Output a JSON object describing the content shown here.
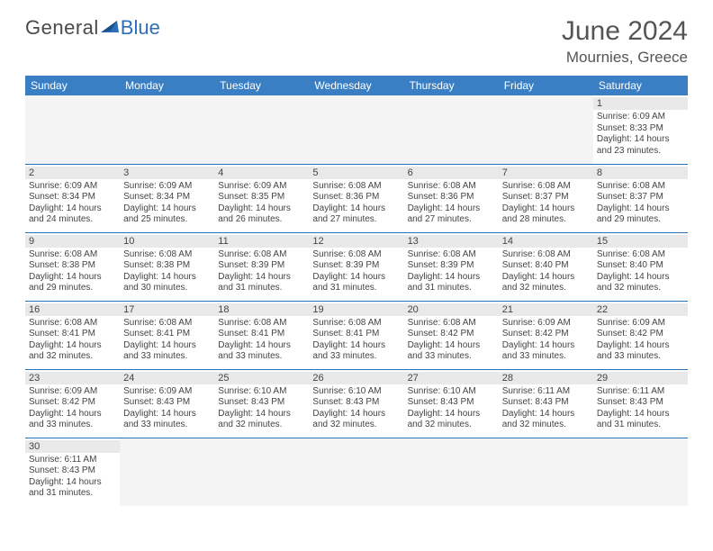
{
  "logo": {
    "general": "General",
    "blue": "Blue",
    "arrow_color": "#2d6fb8"
  },
  "title": "June 2024",
  "location": "Mournies, Greece",
  "header_bg": "#3a7fc4",
  "day_headers": [
    "Sunday",
    "Monday",
    "Tuesday",
    "Wednesday",
    "Thursday",
    "Friday",
    "Saturday"
  ],
  "weeks": [
    [
      null,
      null,
      null,
      null,
      null,
      null,
      {
        "n": "1",
        "sr": "6:09 AM",
        "ss": "8:33 PM",
        "dh": "14",
        "dm": "23"
      }
    ],
    [
      {
        "n": "2",
        "sr": "6:09 AM",
        "ss": "8:34 PM",
        "dh": "14",
        "dm": "24"
      },
      {
        "n": "3",
        "sr": "6:09 AM",
        "ss": "8:34 PM",
        "dh": "14",
        "dm": "25"
      },
      {
        "n": "4",
        "sr": "6:09 AM",
        "ss": "8:35 PM",
        "dh": "14",
        "dm": "26"
      },
      {
        "n": "5",
        "sr": "6:08 AM",
        "ss": "8:36 PM",
        "dh": "14",
        "dm": "27"
      },
      {
        "n": "6",
        "sr": "6:08 AM",
        "ss": "8:36 PM",
        "dh": "14",
        "dm": "27"
      },
      {
        "n": "7",
        "sr": "6:08 AM",
        "ss": "8:37 PM",
        "dh": "14",
        "dm": "28"
      },
      {
        "n": "8",
        "sr": "6:08 AM",
        "ss": "8:37 PM",
        "dh": "14",
        "dm": "29"
      }
    ],
    [
      {
        "n": "9",
        "sr": "6:08 AM",
        "ss": "8:38 PM",
        "dh": "14",
        "dm": "29"
      },
      {
        "n": "10",
        "sr": "6:08 AM",
        "ss": "8:38 PM",
        "dh": "14",
        "dm": "30"
      },
      {
        "n": "11",
        "sr": "6:08 AM",
        "ss": "8:39 PM",
        "dh": "14",
        "dm": "31"
      },
      {
        "n": "12",
        "sr": "6:08 AM",
        "ss": "8:39 PM",
        "dh": "14",
        "dm": "31"
      },
      {
        "n": "13",
        "sr": "6:08 AM",
        "ss": "8:39 PM",
        "dh": "14",
        "dm": "31"
      },
      {
        "n": "14",
        "sr": "6:08 AM",
        "ss": "8:40 PM",
        "dh": "14",
        "dm": "32"
      },
      {
        "n": "15",
        "sr": "6:08 AM",
        "ss": "8:40 PM",
        "dh": "14",
        "dm": "32"
      }
    ],
    [
      {
        "n": "16",
        "sr": "6:08 AM",
        "ss": "8:41 PM",
        "dh": "14",
        "dm": "32"
      },
      {
        "n": "17",
        "sr": "6:08 AM",
        "ss": "8:41 PM",
        "dh": "14",
        "dm": "33"
      },
      {
        "n": "18",
        "sr": "6:08 AM",
        "ss": "8:41 PM",
        "dh": "14",
        "dm": "33"
      },
      {
        "n": "19",
        "sr": "6:08 AM",
        "ss": "8:41 PM",
        "dh": "14",
        "dm": "33"
      },
      {
        "n": "20",
        "sr": "6:08 AM",
        "ss": "8:42 PM",
        "dh": "14",
        "dm": "33"
      },
      {
        "n": "21",
        "sr": "6:09 AM",
        "ss": "8:42 PM",
        "dh": "14",
        "dm": "33"
      },
      {
        "n": "22",
        "sr": "6:09 AM",
        "ss": "8:42 PM",
        "dh": "14",
        "dm": "33"
      }
    ],
    [
      {
        "n": "23",
        "sr": "6:09 AM",
        "ss": "8:42 PM",
        "dh": "14",
        "dm": "33"
      },
      {
        "n": "24",
        "sr": "6:09 AM",
        "ss": "8:43 PM",
        "dh": "14",
        "dm": "33"
      },
      {
        "n": "25",
        "sr": "6:10 AM",
        "ss": "8:43 PM",
        "dh": "14",
        "dm": "32"
      },
      {
        "n": "26",
        "sr": "6:10 AM",
        "ss": "8:43 PM",
        "dh": "14",
        "dm": "32"
      },
      {
        "n": "27",
        "sr": "6:10 AM",
        "ss": "8:43 PM",
        "dh": "14",
        "dm": "32"
      },
      {
        "n": "28",
        "sr": "6:11 AM",
        "ss": "8:43 PM",
        "dh": "14",
        "dm": "32"
      },
      {
        "n": "29",
        "sr": "6:11 AM",
        "ss": "8:43 PM",
        "dh": "14",
        "dm": "31"
      }
    ],
    [
      {
        "n": "30",
        "sr": "6:11 AM",
        "ss": "8:43 PM",
        "dh": "14",
        "dm": "31"
      },
      null,
      null,
      null,
      null,
      null,
      null
    ]
  ],
  "labels": {
    "sunrise": "Sunrise:",
    "sunset": "Sunset:",
    "daylight": "Daylight:",
    "hours": "hours",
    "and": "and",
    "minutes": "minutes."
  }
}
